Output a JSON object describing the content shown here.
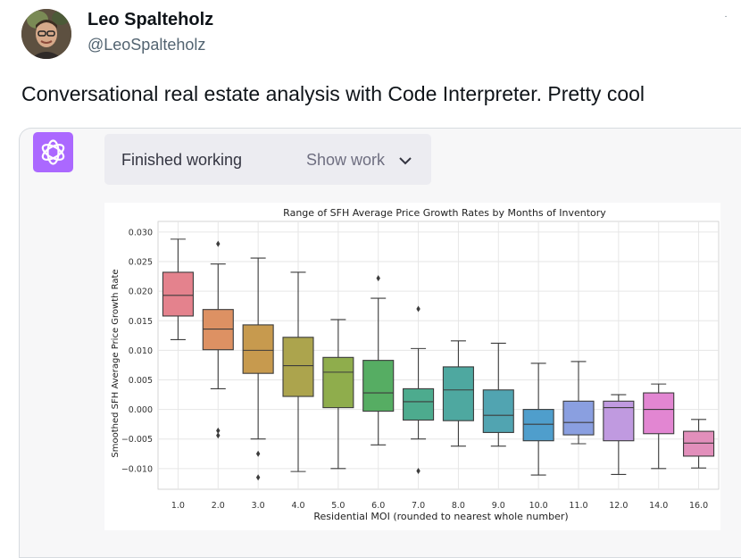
{
  "tweet": {
    "author_name": "Leo Spalteholz",
    "author_handle": "@LeoSpalteholz",
    "more_glyph": "·",
    "text": "Conversational real estate analysis with Code Interpreter.  Pretty cool"
  },
  "chatgpt": {
    "status": "Finished working",
    "show_work_label": "Show work"
  },
  "icons": {
    "avatar": "avatar-photo",
    "logo": "chatgpt-logo-icon",
    "chevron": "chevron-down-icon"
  },
  "colors": {
    "accent": "#ab68ff",
    "grid": "#e6e6e6"
  },
  "chart_data": {
    "type": "box",
    "title": "Range of SFH Average Price Growth Rates by Months of Inventory",
    "xlabel": "Residential MOI (rounded to nearest whole number)",
    "ylabel": "Smoothed SFH Average Price Growth Rate",
    "ylim": [
      -0.0135,
      0.0318
    ],
    "yticks": [
      "0.030",
      "0.025",
      "0.020",
      "0.015",
      "0.010",
      "0.005",
      "0.000",
      "−0.005",
      "−0.010"
    ],
    "ytick_values": [
      0.03,
      0.025,
      0.02,
      0.015,
      0.01,
      0.005,
      0.0,
      -0.005,
      -0.01
    ],
    "grid": true,
    "categories": [
      "1.0",
      "2.0",
      "3.0",
      "4.0",
      "5.0",
      "6.0",
      "7.0",
      "8.0",
      "9.0",
      "10.0",
      "11.0",
      "12.0",
      "14.0",
      "16.0"
    ],
    "boxes": [
      {
        "whislo": 0.0118,
        "q1": 0.0158,
        "med": 0.0193,
        "q3": 0.0232,
        "whishi": 0.0288,
        "fliers": [],
        "color": "#e4828d"
      },
      {
        "whislo": 0.0035,
        "q1": 0.0101,
        "med": 0.0136,
        "q3": 0.0169,
        "whishi": 0.0246,
        "fliers": [
          0.028,
          -0.0036,
          -0.0044
        ],
        "color": "#dd9163"
      },
      {
        "whislo": -0.005,
        "q1": 0.0061,
        "med": 0.01,
        "q3": 0.0143,
        "whishi": 0.0256,
        "fliers": [
          -0.0075,
          -0.0115
        ],
        "color": "#c79a4e"
      },
      {
        "whislo": -0.0105,
        "q1": 0.0022,
        "med": 0.0074,
        "q3": 0.0122,
        "whishi": 0.0232,
        "fliers": [],
        "color": "#aca44d"
      },
      {
        "whislo": -0.01,
        "q1": 0.0003,
        "med": 0.0063,
        "q3": 0.0088,
        "whishi": 0.0152,
        "fliers": [],
        "color": "#8fad4c"
      },
      {
        "whislo": -0.006,
        "q1": -0.0003,
        "med": 0.0028,
        "q3": 0.0083,
        "whishi": 0.0188,
        "fliers": [
          0.0222
        ],
        "color": "#56ad63"
      },
      {
        "whislo": -0.005,
        "q1": -0.0018,
        "med": 0.0013,
        "q3": 0.0035,
        "whishi": 0.0103,
        "fliers": [
          0.017,
          -0.0104
        ],
        "color": "#4dab8e"
      },
      {
        "whislo": -0.0062,
        "q1": -0.0019,
        "med": 0.0033,
        "q3": 0.0072,
        "whishi": 0.0116,
        "fliers": [],
        "color": "#4ea8a0"
      },
      {
        "whislo": -0.0062,
        "q1": -0.0039,
        "med": -0.001,
        "q3": 0.0033,
        "whishi": 0.0112,
        "fliers": [],
        "color": "#51a4b1"
      },
      {
        "whislo": -0.0111,
        "q1": -0.0053,
        "med": -0.0025,
        "q3": 0.0,
        "whishi": 0.0078,
        "fliers": [],
        "color": "#4f9ecc"
      },
      {
        "whislo": -0.0058,
        "q1": -0.0043,
        "med": -0.0022,
        "q3": 0.0014,
        "whishi": 0.0081,
        "fliers": [],
        "color": "#8a9fe0"
      },
      {
        "whislo": -0.011,
        "q1": -0.0053,
        "med": 0.0003,
        "q3": 0.0014,
        "whishi": 0.0025,
        "fliers": [],
        "color": "#c09ae0"
      },
      {
        "whislo": -0.01,
        "q1": -0.0041,
        "med": 0.0,
        "q3": 0.0028,
        "whishi": 0.0043,
        "fliers": [],
        "color": "#e286d2"
      },
      {
        "whislo": -0.0099,
        "q1": -0.0079,
        "med": -0.0057,
        "q3": -0.0037,
        "whishi": -0.0017,
        "fliers": [],
        "color": "#e28fbb"
      }
    ]
  }
}
